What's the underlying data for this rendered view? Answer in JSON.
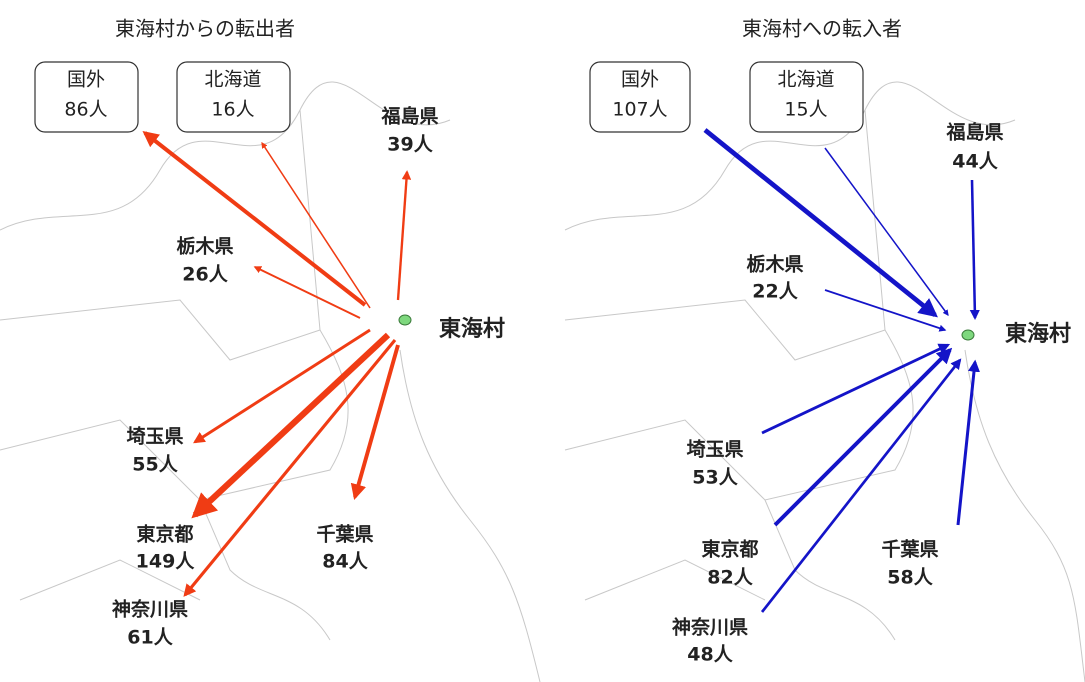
{
  "panels": [
    {
      "title": "東海村からの転出者",
      "center": "東海村",
      "color": "#f03c14",
      "direction": "out",
      "flows": [
        {
          "label": "国外",
          "value": 86,
          "count_label": "86人",
          "boxed": true
        },
        {
          "label": "北海道",
          "value": 16,
          "count_label": "16人",
          "boxed": true
        },
        {
          "label": "福島県",
          "value": 39,
          "count_label": "39人",
          "boxed": false
        },
        {
          "label": "栃木県",
          "value": 26,
          "count_label": "26人",
          "boxed": false
        },
        {
          "label": "埼玉県",
          "value": 55,
          "count_label": "55人",
          "boxed": false
        },
        {
          "label": "東京都",
          "value": 149,
          "count_label": "149人",
          "boxed": false
        },
        {
          "label": "神奈川県",
          "value": 61,
          "count_label": "61人",
          "boxed": false
        },
        {
          "label": "千葉県",
          "value": 84,
          "count_label": "84人",
          "boxed": false
        }
      ]
    },
    {
      "title": "東海村への転入者",
      "center": "東海村",
      "color": "#1414c8",
      "direction": "in",
      "flows": [
        {
          "label": "国外",
          "value": 107,
          "count_label": "107人",
          "boxed": true
        },
        {
          "label": "北海道",
          "value": 15,
          "count_label": "15人",
          "boxed": true
        },
        {
          "label": "福島県",
          "value": 44,
          "count_label": "44人",
          "boxed": false
        },
        {
          "label": "栃木県",
          "value": 22,
          "count_label": "22人",
          "boxed": false
        },
        {
          "label": "埼玉県",
          "value": 53,
          "count_label": "53人",
          "boxed": false
        },
        {
          "label": "東京都",
          "value": 82,
          "count_label": "82人",
          "boxed": false
        },
        {
          "label": "神奈川県",
          "value": 48,
          "count_label": "48人",
          "boxed": false
        },
        {
          "label": "千葉県",
          "value": 58,
          "count_label": "58人",
          "boxed": false
        }
      ]
    }
  ]
}
